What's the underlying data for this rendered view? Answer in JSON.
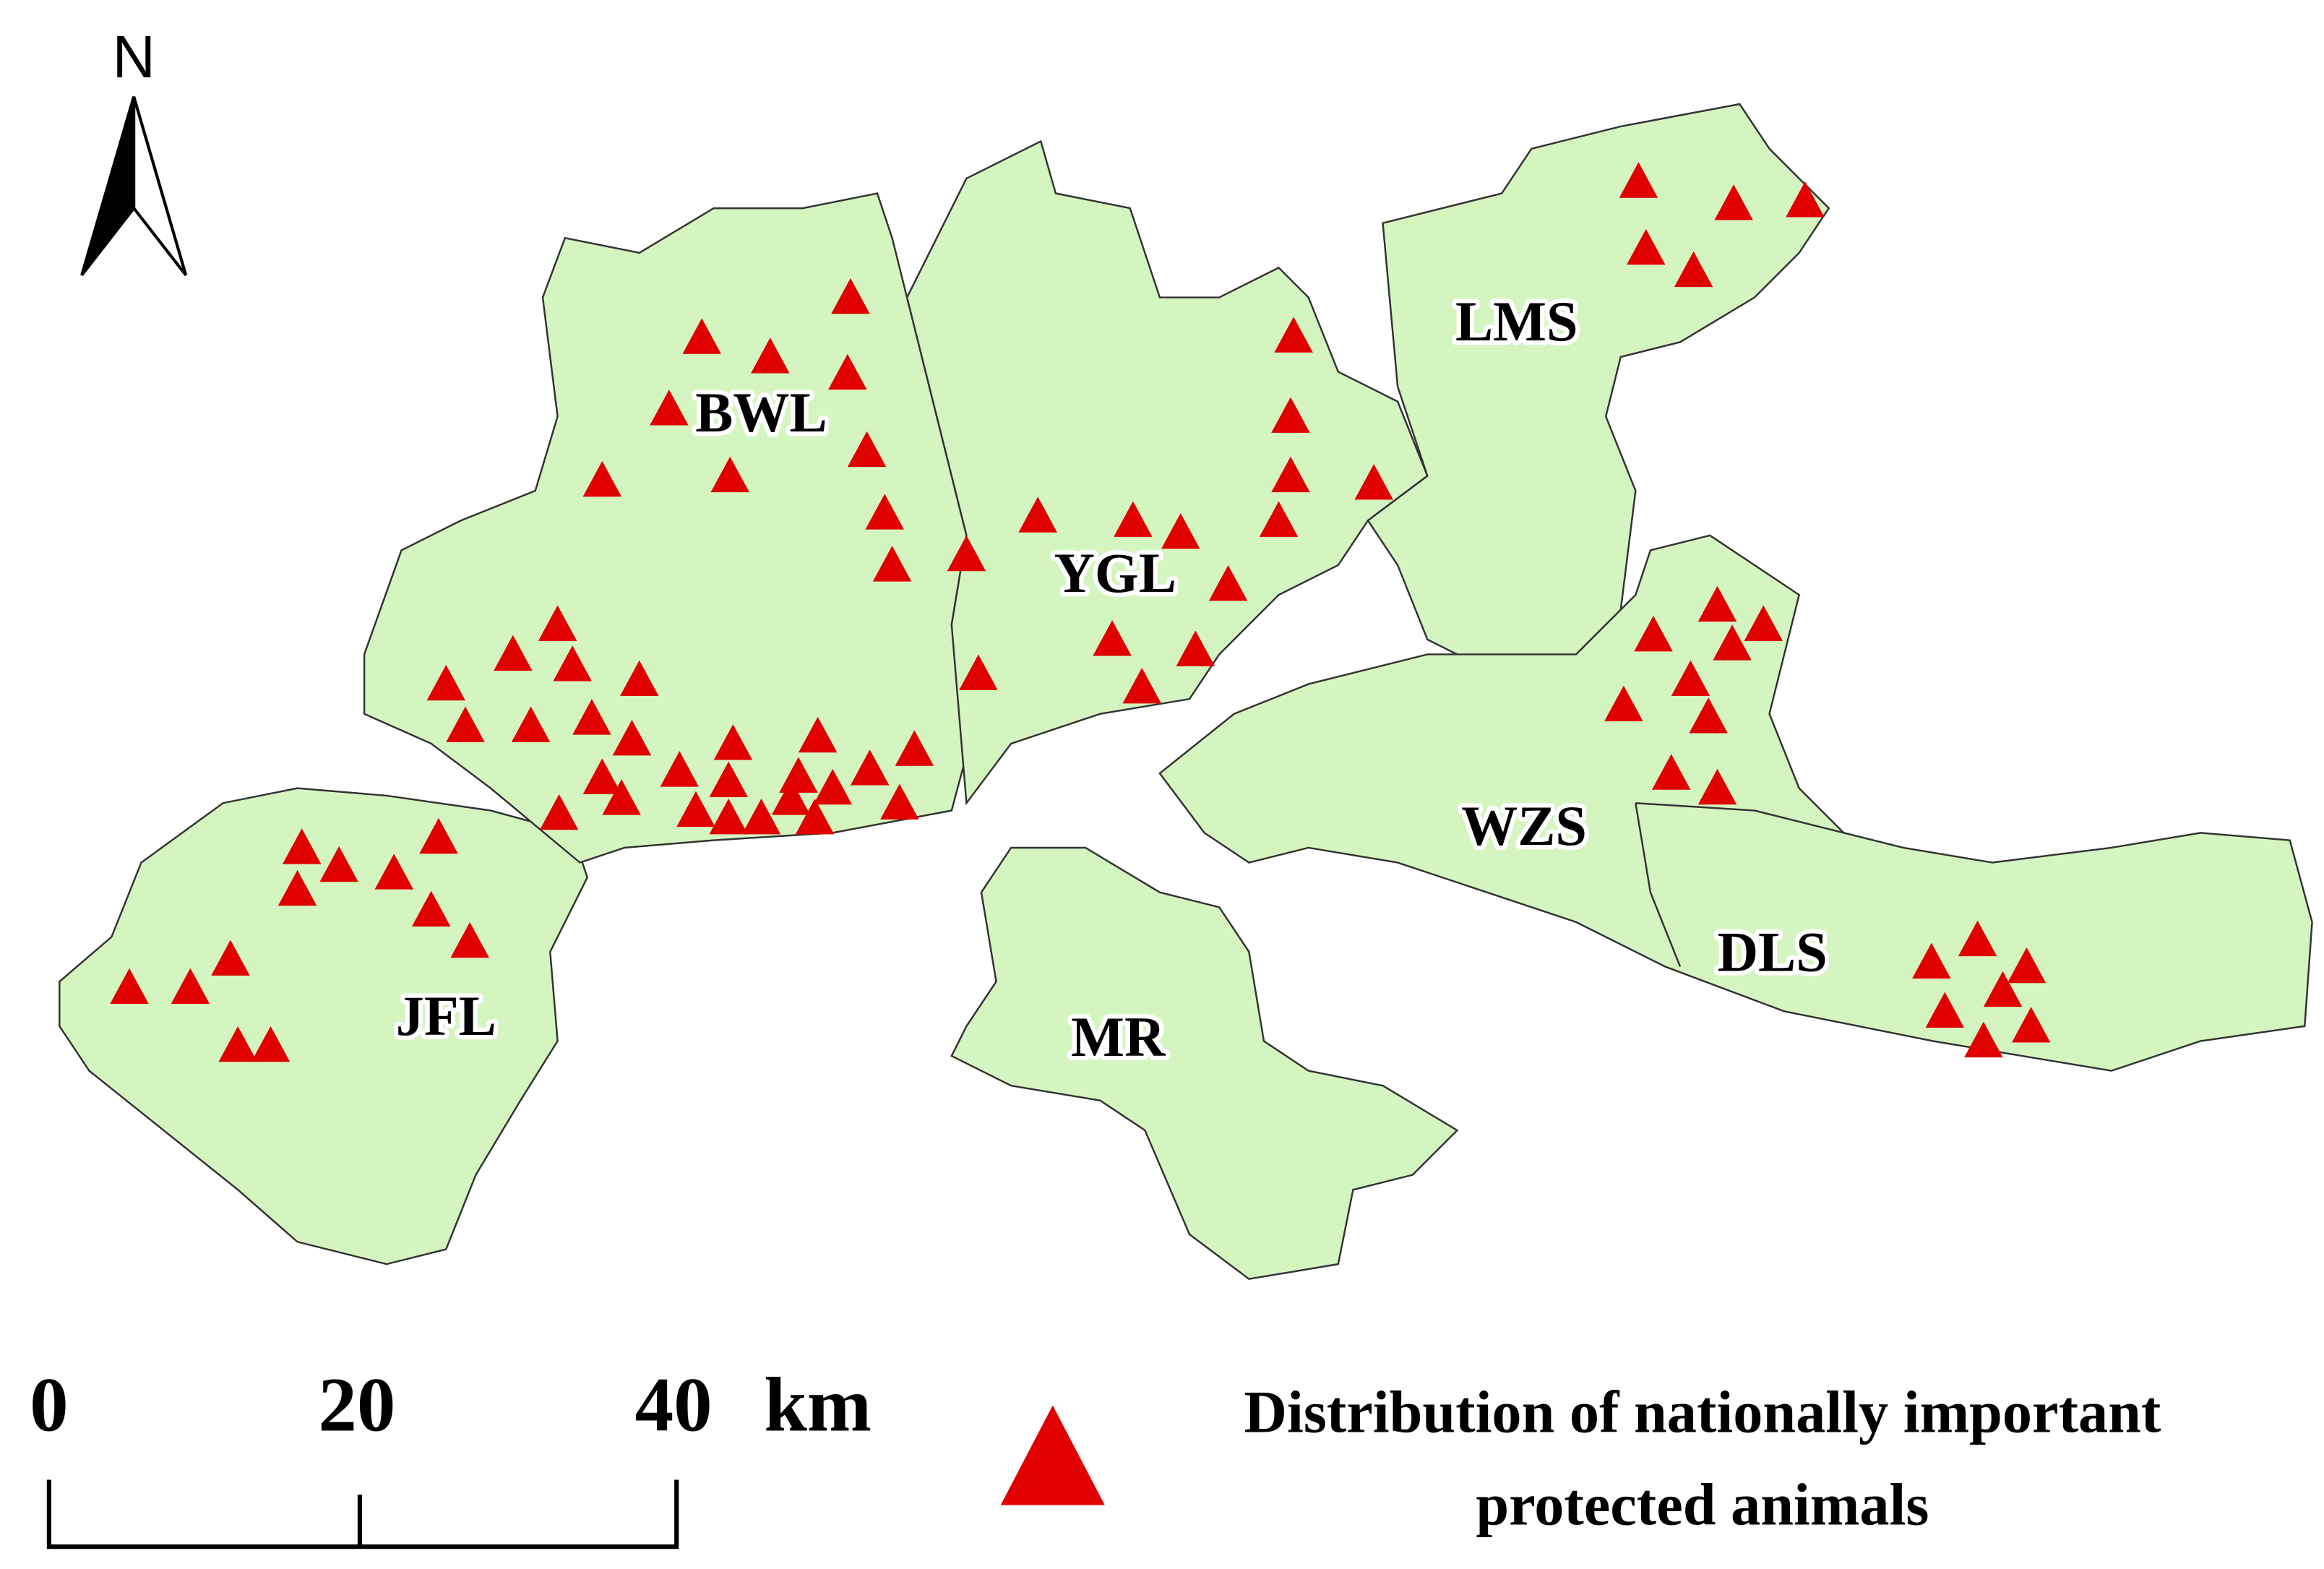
{
  "north": "N",
  "regions": [
    "BWL",
    "YGL",
    "LMS",
    "WZS",
    "DLS",
    "JFL",
    "MR"
  ],
  "scale": {
    "labels": [
      "0",
      "20",
      "40"
    ],
    "unit": "km"
  },
  "legend": {
    "lines": [
      "Distribution of nationally important",
      "protected animals"
    ]
  }
}
